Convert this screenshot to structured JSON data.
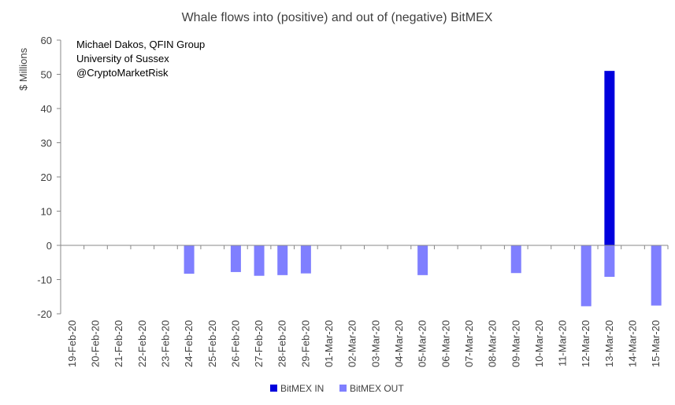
{
  "chart_data": {
    "type": "bar",
    "title": "Whale flows into (positive) and out of (negative) BitMEX",
    "ylabel": "$ Millions",
    "xlabel": "",
    "ylim": [
      -20,
      60
    ],
    "yticks": [
      60,
      50,
      40,
      30,
      20,
      10,
      0,
      -10,
      -20
    ],
    "grid": false,
    "legend_position": "bottom",
    "annotation_lines": [
      "Michael Dakos, QFIN Group",
      "University of Sussex",
      "@CryptoMarketRisk"
    ],
    "categories": [
      "19-Feb-20",
      "20-Feb-20",
      "21-Feb-20",
      "22-Feb-20",
      "23-Feb-20",
      "24-Feb-20",
      "25-Feb-20",
      "26-Feb-20",
      "27-Feb-20",
      "28-Feb-20",
      "29-Feb-20",
      "01-Mar-20",
      "02-Mar-20",
      "03-Mar-20",
      "04-Mar-20",
      "05-Mar-20",
      "06-Mar-20",
      "07-Mar-20",
      "08-Mar-20",
      "09-Mar-20",
      "10-Mar-20",
      "11-Mar-20",
      "12-Mar-20",
      "13-Mar-20",
      "14-Mar-20",
      "15-Mar-20"
    ],
    "series": [
      {
        "name": "BitMEX IN",
        "color": "#0000dd",
        "values": [
          0,
          0,
          0,
          0,
          0,
          0,
          0,
          0,
          0,
          0,
          0,
          0,
          0,
          0,
          0,
          0,
          0,
          0,
          0,
          0,
          0,
          0,
          0,
          51,
          0,
          0
        ]
      },
      {
        "name": "BitMEX OUT",
        "color": "#7f7fff",
        "values": [
          0,
          0,
          0,
          0,
          0,
          -8.3,
          0,
          -7.8,
          -8.9,
          -8.7,
          -8.2,
          0,
          0,
          0,
          0,
          -8.7,
          0,
          0,
          0,
          -8.1,
          0,
          0,
          -17.8,
          -9.2,
          0,
          -17.6
        ]
      }
    ]
  }
}
